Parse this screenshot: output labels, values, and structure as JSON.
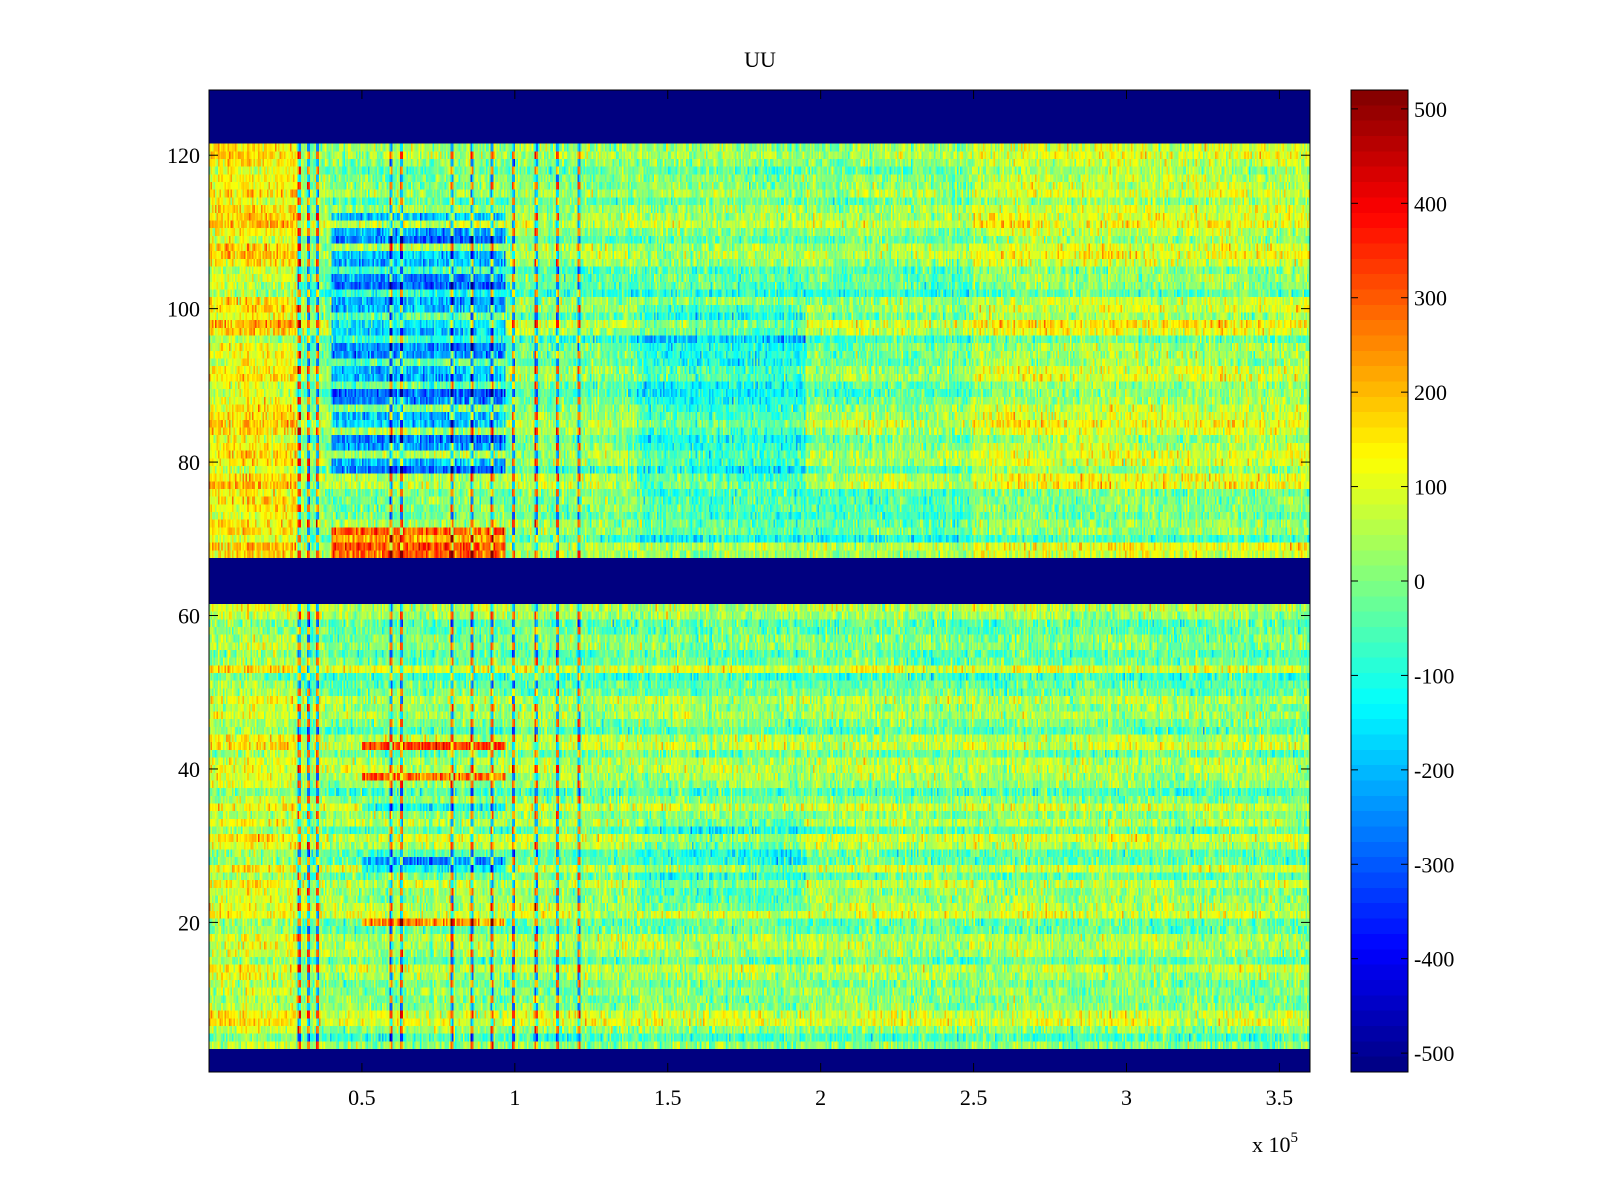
{
  "chart_data": {
    "type": "heatmap",
    "title": "UU",
    "xlabel": "",
    "ylabel": "",
    "x_range": [
      0,
      360000
    ],
    "y_range": [
      0.5,
      128.5
    ],
    "x_ticks": [
      {
        "value": 50000,
        "label": "0.5"
      },
      {
        "value": 100000,
        "label": "1"
      },
      {
        "value": 150000,
        "label": "1.5"
      },
      {
        "value": 200000,
        "label": "2"
      },
      {
        "value": 250000,
        "label": "2.5"
      },
      {
        "value": 300000,
        "label": "3"
      },
      {
        "value": 350000,
        "label": "3.5"
      }
    ],
    "x_exponent_label": "x 10",
    "x_exponent_power": "5",
    "y_ticks": [
      {
        "value": 20,
        "label": "20"
      },
      {
        "value": 40,
        "label": "40"
      },
      {
        "value": 60,
        "label": "60"
      },
      {
        "value": 80,
        "label": "80"
      },
      {
        "value": 100,
        "label": "100"
      },
      {
        "value": 120,
        "label": "120"
      }
    ],
    "colormap": "jet",
    "color_range": [
      -520,
      520
    ],
    "colorbar_ticks": [
      {
        "value": 500,
        "label": "500"
      },
      {
        "value": 400,
        "label": "400"
      },
      {
        "value": 300,
        "label": "300"
      },
      {
        "value": 200,
        "label": "200"
      },
      {
        "value": 100,
        "label": "100"
      },
      {
        "value": 0,
        "label": "0"
      },
      {
        "value": -100,
        "label": "-100"
      },
      {
        "value": -200,
        "label": "-200"
      },
      {
        "value": -300,
        "label": "-300"
      },
      {
        "value": -400,
        "label": "-400"
      },
      {
        "value": -500,
        "label": "-500"
      }
    ],
    "missing_channel_ranges": [
      [
        1,
        3
      ],
      [
        62,
        67
      ],
      [
        122,
        128
      ]
    ],
    "missing_value": -520,
    "grid": false,
    "legend": "colorbar-right"
  }
}
